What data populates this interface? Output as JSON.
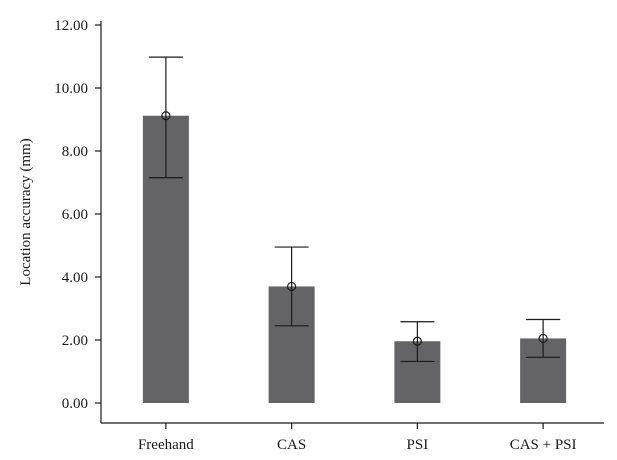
{
  "chart_data": {
    "type": "bar",
    "categories": [
      "Freehand",
      "CAS",
      "PSI",
      "CAS + PSI"
    ],
    "values": [
      9.12,
      3.7,
      1.96,
      2.05
    ],
    "error_bars": {
      "upper": [
        10.98,
        4.95,
        2.58,
        2.65
      ],
      "lower": [
        7.15,
        2.45,
        1.32,
        1.45
      ]
    },
    "title": "",
    "xlabel": "",
    "ylabel": "Location accuracy (mm)",
    "ylim": [
      0,
      12
    ],
    "yticks": [
      "0.00",
      "2.00",
      "4.00",
      "6.00",
      "8.00",
      "10.00",
      "12.00"
    ],
    "grid": false,
    "legend": "none",
    "colors": {
      "bar": "#646467",
      "error": "#1a1a1a",
      "axis": "#1a1a1a"
    }
  }
}
